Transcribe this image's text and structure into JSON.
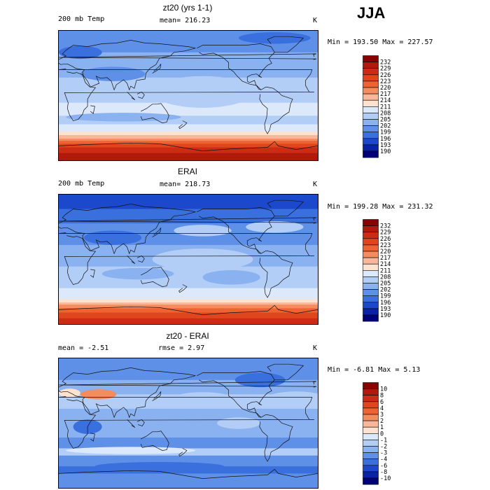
{
  "season": "JJA",
  "panels": [
    {
      "title": "zt20 (yrs 1-1)",
      "left_label": "200 mb Temp",
      "center_label": "mean= 216.23",
      "right_label": "K",
      "minmax": "Min = 193.50 Max = 227.57",
      "colorbar": {
        "labels": [
          "232",
          "229",
          "226",
          "223",
          "220",
          "217",
          "214",
          "211",
          "208",
          "205",
          "202",
          "199",
          "196",
          "193",
          "190"
        ],
        "colors": [
          "#8b0000",
          "#b01a0c",
          "#cc2b14",
          "#e0461e",
          "#ef6332",
          "#f58c5e",
          "#f9b698",
          "#fde2d0",
          "#dce9fb",
          "#b3cef6",
          "#8ab1f0",
          "#5f90e8",
          "#3a6fde",
          "#1c48cc",
          "#0a22a8",
          "#00007a"
        ]
      },
      "field": {
        "bands": [
          {
            "lat_from": 90,
            "lat_to": 60,
            "level": 11
          },
          {
            "lat_from": 60,
            "lat_to": 25,
            "level": 10
          },
          {
            "lat_from": 25,
            "lat_to": -10,
            "level": 9
          },
          {
            "lat_from": -10,
            "lat_to": -28,
            "level": 8
          },
          {
            "lat_from": -28,
            "lat_to": -40,
            "level": 9
          },
          {
            "lat_from": -40,
            "lat_to": -50,
            "level": 8
          },
          {
            "lat_from": -50,
            "lat_to": -55,
            "level": 7
          },
          {
            "lat_from": -55,
            "lat_to": -60,
            "level": 6
          },
          {
            "lat_from": -60,
            "lat_to": -63,
            "level": 5
          },
          {
            "lat_from": -63,
            "lat_to": -67,
            "level": 4
          },
          {
            "lat_from": -67,
            "lat_to": -72,
            "level": 3
          },
          {
            "lat_from": -72,
            "lat_to": -80,
            "level": 2
          },
          {
            "lat_from": -80,
            "lat_to": -90,
            "level": 1
          }
        ],
        "blobs": [
          {
            "lon": 75,
            "lat": 30,
            "rlon": 45,
            "rlat": 10,
            "level": 11
          },
          {
            "lon": 30,
            "lat": 60,
            "rlon": 30,
            "rlat": 9,
            "level": 12
          },
          {
            "lon": 240,
            "lat": 45,
            "rlon": 50,
            "rlat": 12,
            "level": 10
          },
          {
            "lon": 200,
            "lat": 5,
            "rlon": 70,
            "rlat": 22,
            "level": 9
          },
          {
            "lon": 90,
            "lat": -30,
            "rlon": 80,
            "rlat": 6,
            "level": 10
          },
          {
            "lon": 300,
            "lat": 80,
            "rlon": 50,
            "rlat": 8,
            "level": 12
          }
        ]
      }
    },
    {
      "title": "ERAI",
      "left_label": "200 mb Temp",
      "center_label": "mean= 218.73",
      "right_label": "K",
      "minmax": "Min = 199.28 Max = 231.32",
      "colorbar": {
        "labels": [
          "232",
          "229",
          "226",
          "223",
          "220",
          "217",
          "214",
          "211",
          "208",
          "205",
          "202",
          "199",
          "196",
          "193",
          "190"
        ],
        "colors": [
          "#8b0000",
          "#b01a0c",
          "#cc2b14",
          "#e0461e",
          "#ef6332",
          "#f58c5e",
          "#f9b698",
          "#fde2d0",
          "#dce9fb",
          "#b3cef6",
          "#8ab1f0",
          "#5f90e8",
          "#3a6fde",
          "#1c48cc",
          "#0a22a8",
          "#00007a"
        ]
      },
      "field": {
        "bands": [
          {
            "lat_from": 90,
            "lat_to": 70,
            "level": 13
          },
          {
            "lat_from": 70,
            "lat_to": 50,
            "level": 12
          },
          {
            "lat_from": 50,
            "lat_to": 20,
            "level": 11
          },
          {
            "lat_from": 20,
            "lat_to": -10,
            "level": 10
          },
          {
            "lat_from": -10,
            "lat_to": -40,
            "level": 9
          },
          {
            "lat_from": -40,
            "lat_to": -55,
            "level": 8
          },
          {
            "lat_from": -55,
            "lat_to": -60,
            "level": 7
          },
          {
            "lat_from": -60,
            "lat_to": -63,
            "level": 6
          },
          {
            "lat_from": -63,
            "lat_to": -68,
            "level": 5
          },
          {
            "lat_from": -68,
            "lat_to": -74,
            "level": 4
          },
          {
            "lat_from": -74,
            "lat_to": -82,
            "level": 3
          },
          {
            "lat_from": -82,
            "lat_to": -90,
            "level": 2
          }
        ],
        "blobs": [
          {
            "lon": 75,
            "lat": 30,
            "rlon": 40,
            "rlat": 10,
            "level": 12
          },
          {
            "lon": 200,
            "lat": 40,
            "rlon": 40,
            "rlat": 8,
            "level": 9
          },
          {
            "lon": 300,
            "lat": 45,
            "rlon": 40,
            "rlat": 8,
            "level": 9
          },
          {
            "lon": 200,
            "lat": 0,
            "rlon": 70,
            "rlat": 15,
            "level": 9
          },
          {
            "lon": 240,
            "lat": -25,
            "rlon": 40,
            "rlat": 10,
            "level": 10
          },
          {
            "lon": 110,
            "lat": -20,
            "rlon": 50,
            "rlat": 8,
            "level": 10
          }
        ]
      }
    },
    {
      "title": "zt20 - ERAI",
      "left_label": "mean =   -2.51",
      "center_label": "rmse =    2.97",
      "right_label": "K",
      "minmax": "Min =  -6.81 Max =   5.13",
      "colorbar": {
        "labels": [
          "10",
          "8",
          "6",
          "4",
          "3",
          "2",
          "1",
          "0",
          "-1",
          "-2",
          "-3",
          "-4",
          "-6",
          "-8",
          "-10"
        ],
        "colors": [
          "#8b0000",
          "#b01a0c",
          "#cc2b14",
          "#e0461e",
          "#ef6332",
          "#f58c5e",
          "#f9b698",
          "#fde2d0",
          "#dce9fb",
          "#b3cef6",
          "#8ab1f0",
          "#5f90e8",
          "#3a6fde",
          "#1c48cc",
          "#0a22a8",
          "#00007a"
        ]
      },
      "field": {
        "bands": [
          {
            "lat_from": 90,
            "lat_to": 60,
            "level": 11
          },
          {
            "lat_from": 60,
            "lat_to": 40,
            "level": 10
          },
          {
            "lat_from": 40,
            "lat_to": 20,
            "level": 9
          },
          {
            "lat_from": 20,
            "lat_to": -20,
            "level": 10
          },
          {
            "lat_from": -20,
            "lat_to": -35,
            "level": 11
          },
          {
            "lat_from": -35,
            "lat_to": -45,
            "level": 9
          },
          {
            "lat_from": -45,
            "lat_to": -60,
            "level": 11
          },
          {
            "lat_from": -60,
            "lat_to": -70,
            "level": 12
          },
          {
            "lat_from": -70,
            "lat_to": -90,
            "level": 11
          }
        ],
        "blobs": [
          {
            "lon": 55,
            "lat": 40,
            "rlon": 25,
            "rlat": 7,
            "level": 5
          },
          {
            "lon": 15,
            "lat": 42,
            "rlon": 15,
            "rlat": 6,
            "level": 7
          },
          {
            "lon": 200,
            "lat": 35,
            "rlon": 40,
            "rlat": 8,
            "level": 9
          },
          {
            "lon": 330,
            "lat": 35,
            "rlon": 40,
            "rlat": 9,
            "level": 9
          },
          {
            "lon": 250,
            "lat": 0,
            "rlon": 30,
            "rlat": 8,
            "level": 9
          },
          {
            "lon": 100,
            "lat": -38,
            "rlon": 90,
            "rlat": 5,
            "level": 8
          },
          {
            "lon": 280,
            "lat": 60,
            "rlon": 35,
            "rlat": 10,
            "level": 12
          },
          {
            "lon": 40,
            "lat": -5,
            "rlon": 20,
            "rlat": 10,
            "level": 12
          },
          {
            "lon": 140,
            "lat": -60,
            "rlon": 90,
            "rlat": 6,
            "level": 12
          }
        ]
      }
    }
  ]
}
